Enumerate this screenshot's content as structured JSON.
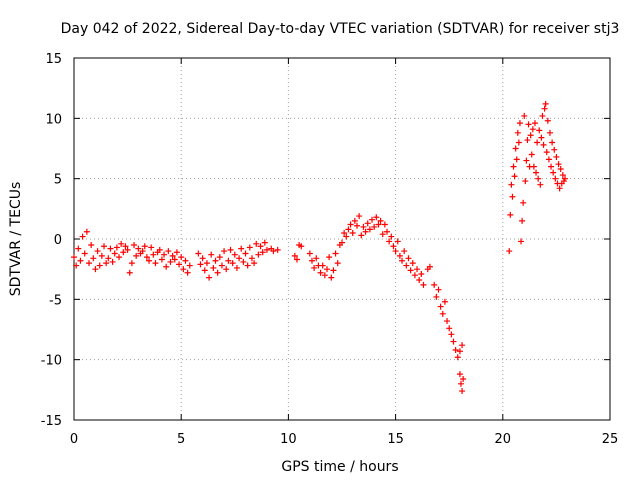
{
  "chart_data": {
    "type": "scatter",
    "title": "Day 042 of 2022, Sidereal Day-to-day VTEC variation (SDTVAR) for receiver stj3",
    "xlabel": "GPS time / hours",
    "ylabel": "SDTVAR / TECUs",
    "xlim": [
      0,
      25
    ],
    "ylim": [
      -15,
      15
    ],
    "xticks": [
      0,
      5,
      10,
      15,
      20,
      25
    ],
    "yticks": [
      -15,
      -10,
      -5,
      0,
      5,
      10,
      15
    ],
    "grid": true,
    "marker": "plus",
    "series_color": "#ff0000",
    "series": [
      {
        "name": "SDTVAR",
        "points": [
          [
            0.0,
            -1.5
          ],
          [
            0.1,
            -2.2
          ],
          [
            0.2,
            -0.8
          ],
          [
            0.3,
            -1.8
          ],
          [
            0.4,
            0.2
          ],
          [
            0.5,
            -1.2
          ],
          [
            0.6,
            0.6
          ],
          [
            0.7,
            -2.0
          ],
          [
            0.8,
            -0.5
          ],
          [
            0.9,
            -1.6
          ],
          [
            1.0,
            -2.5
          ],
          [
            1.1,
            -1.0
          ],
          [
            1.2,
            -2.2
          ],
          [
            1.3,
            -1.4
          ],
          [
            1.4,
            -0.6
          ],
          [
            1.5,
            -2.0
          ],
          [
            1.6,
            -1.6
          ],
          [
            1.7,
            -0.8
          ],
          [
            1.8,
            -1.9
          ],
          [
            1.9,
            -1.2
          ],
          [
            2.0,
            -0.7
          ],
          [
            2.1,
            -1.5
          ],
          [
            2.2,
            -0.4
          ],
          [
            2.3,
            -1.1
          ],
          [
            2.4,
            -0.6
          ],
          [
            2.5,
            -0.9
          ],
          [
            2.6,
            -2.8
          ],
          [
            2.7,
            -2.0
          ],
          [
            2.8,
            -0.5
          ],
          [
            2.9,
            -1.4
          ],
          [
            3.0,
            -0.8
          ],
          [
            3.1,
            -1.2
          ],
          [
            3.2,
            -1.0
          ],
          [
            3.3,
            -0.6
          ],
          [
            3.4,
            -1.5
          ],
          [
            3.5,
            -1.8
          ],
          [
            3.6,
            -0.7
          ],
          [
            3.7,
            -1.3
          ],
          [
            3.8,
            -2.0
          ],
          [
            3.9,
            -1.1
          ],
          [
            4.0,
            -0.9
          ],
          [
            4.1,
            -1.7
          ],
          [
            4.2,
            -1.3
          ],
          [
            4.3,
            -2.3
          ],
          [
            4.4,
            -1.0
          ],
          [
            4.5,
            -1.9
          ],
          [
            4.6,
            -1.4
          ],
          [
            4.7,
            -1.7
          ],
          [
            4.8,
            -1.1
          ],
          [
            4.9,
            -2.1
          ],
          [
            5.0,
            -1.5
          ],
          [
            5.1,
            -2.5
          ],
          [
            5.2,
            -1.8
          ],
          [
            5.3,
            -2.8
          ],
          [
            5.4,
            -2.2
          ],
          [
            5.8,
            -1.2
          ],
          [
            5.9,
            -2.1
          ],
          [
            6.0,
            -1.6
          ],
          [
            6.1,
            -2.6
          ],
          [
            6.2,
            -2.0
          ],
          [
            6.3,
            -3.2
          ],
          [
            6.4,
            -1.3
          ],
          [
            6.5,
            -2.4
          ],
          [
            6.6,
            -1.8
          ],
          [
            6.7,
            -2.8
          ],
          [
            6.8,
            -1.5
          ],
          [
            6.9,
            -2.2
          ],
          [
            7.0,
            -1.0
          ],
          [
            7.1,
            -2.5
          ],
          [
            7.2,
            -1.8
          ],
          [
            7.3,
            -0.9
          ],
          [
            7.4,
            -2.0
          ],
          [
            7.5,
            -1.3
          ],
          [
            7.6,
            -2.4
          ],
          [
            7.7,
            -1.6
          ],
          [
            7.8,
            -0.8
          ],
          [
            7.9,
            -1.9
          ],
          [
            8.0,
            -1.2
          ],
          [
            8.1,
            -2.2
          ],
          [
            8.2,
            -0.7
          ],
          [
            8.3,
            -1.6
          ],
          [
            8.4,
            -2.0
          ],
          [
            8.5,
            -0.4
          ],
          [
            8.6,
            -1.3
          ],
          [
            8.7,
            -0.6
          ],
          [
            8.8,
            -1.1
          ],
          [
            8.9,
            -0.3
          ],
          [
            9.0,
            -0.9
          ],
          [
            9.2,
            -0.8
          ],
          [
            9.3,
            -1.0
          ],
          [
            9.5,
            -0.9
          ],
          [
            10.3,
            -1.4
          ],
          [
            10.4,
            -1.7
          ],
          [
            10.5,
            -0.5
          ],
          [
            10.6,
            -0.6
          ],
          [
            11.0,
            -1.2
          ],
          [
            11.1,
            -1.8
          ],
          [
            11.2,
            -2.4
          ],
          [
            11.3,
            -1.6
          ],
          [
            11.4,
            -2.2
          ],
          [
            11.5,
            -2.8
          ],
          [
            11.6,
            -2.2
          ],
          [
            11.7,
            -3.0
          ],
          [
            11.8,
            -2.5
          ],
          [
            11.9,
            -1.5
          ],
          [
            12.0,
            -3.2
          ],
          [
            12.1,
            -2.6
          ],
          [
            12.2,
            -1.2
          ],
          [
            12.3,
            -2.0
          ],
          [
            12.4,
            -0.5
          ],
          [
            12.5,
            -0.3
          ],
          [
            12.6,
            0.5
          ],
          [
            12.7,
            0.2
          ],
          [
            12.8,
            0.8
          ],
          [
            12.9,
            1.2
          ],
          [
            13.0,
            0.5
          ],
          [
            13.1,
            1.5
          ],
          [
            13.2,
            1.1
          ],
          [
            13.3,
            1.9
          ],
          [
            13.4,
            0.3
          ],
          [
            13.5,
            1.0
          ],
          [
            13.6,
            0.6
          ],
          [
            13.7,
            1.3
          ],
          [
            13.8,
            0.8
          ],
          [
            13.9,
            1.6
          ],
          [
            14.0,
            1.0
          ],
          [
            14.1,
            1.8
          ],
          [
            14.2,
            1.2
          ],
          [
            14.3,
            1.5
          ],
          [
            14.4,
            0.4
          ],
          [
            14.5,
            1.2
          ],
          [
            14.6,
            0.6
          ],
          [
            14.7,
            -0.2
          ],
          [
            14.8,
            0.2
          ],
          [
            14.9,
            -0.6
          ],
          [
            15.0,
            -1.0
          ],
          [
            15.1,
            -0.2
          ],
          [
            15.2,
            -1.4
          ],
          [
            15.3,
            -1.8
          ],
          [
            15.4,
            -1.0
          ],
          [
            15.5,
            -2.2
          ],
          [
            15.6,
            -1.6
          ],
          [
            15.7,
            -2.6
          ],
          [
            15.8,
            -2.0
          ],
          [
            15.9,
            -3.0
          ],
          [
            16.0,
            -2.5
          ],
          [
            16.1,
            -3.4
          ],
          [
            16.2,
            -2.9
          ],
          [
            16.3,
            -3.8
          ],
          [
            16.5,
            -2.5
          ],
          [
            16.6,
            -2.3
          ],
          [
            16.8,
            -3.8
          ],
          [
            16.9,
            -4.8
          ],
          [
            17.0,
            -4.2
          ],
          [
            17.1,
            -5.6
          ],
          [
            17.2,
            -6.2
          ],
          [
            17.3,
            -5.2
          ],
          [
            17.4,
            -6.8
          ],
          [
            17.5,
            -7.4
          ],
          [
            17.6,
            -7.9
          ],
          [
            17.7,
            -8.5
          ],
          [
            17.8,
            -9.2
          ],
          [
            17.9,
            -9.8
          ],
          [
            18.0,
            -9.3
          ],
          [
            18.1,
            -8.8
          ],
          [
            18.0,
            -11.2
          ],
          [
            18.05,
            -12.0
          ],
          [
            18.1,
            -12.6
          ],
          [
            18.15,
            -11.6
          ],
          [
            20.3,
            -1.0
          ],
          [
            20.35,
            2.0
          ],
          [
            20.4,
            4.5
          ],
          [
            20.45,
            3.5
          ],
          [
            20.5,
            6.0
          ],
          [
            20.55,
            5.2
          ],
          [
            20.6,
            7.5
          ],
          [
            20.65,
            6.6
          ],
          [
            20.7,
            8.8
          ],
          [
            20.75,
            8.0
          ],
          [
            20.8,
            9.6
          ],
          [
            20.85,
            -0.2
          ],
          [
            20.9,
            1.5
          ],
          [
            20.95,
            3.0
          ],
          [
            21.0,
            10.2
          ],
          [
            21.05,
            4.8
          ],
          [
            21.1,
            6.5
          ],
          [
            21.15,
            8.2
          ],
          [
            21.2,
            9.5
          ],
          [
            21.25,
            6.0
          ],
          [
            21.3,
            8.6
          ],
          [
            21.35,
            7.0
          ],
          [
            21.4,
            9.1
          ],
          [
            21.45,
            6.0
          ],
          [
            21.5,
            9.6
          ],
          [
            21.55,
            5.5
          ],
          [
            21.6,
            8.0
          ],
          [
            21.65,
            5.0
          ],
          [
            21.7,
            9.0
          ],
          [
            21.75,
            4.5
          ],
          [
            21.8,
            8.4
          ],
          [
            21.85,
            10.2
          ],
          [
            21.9,
            7.8
          ],
          [
            21.95,
            10.8
          ],
          [
            22.0,
            11.2
          ],
          [
            22.05,
            7.2
          ],
          [
            22.1,
            9.8
          ],
          [
            22.15,
            6.6
          ],
          [
            22.2,
            8.8
          ],
          [
            22.25,
            6.0
          ],
          [
            22.3,
            8.0
          ],
          [
            22.35,
            5.5
          ],
          [
            22.4,
            7.4
          ],
          [
            22.45,
            5.0
          ],
          [
            22.5,
            6.8
          ],
          [
            22.55,
            4.6
          ],
          [
            22.6,
            6.2
          ],
          [
            22.65,
            4.2
          ],
          [
            22.7,
            5.8
          ],
          [
            22.75,
            4.6
          ],
          [
            22.8,
            5.3
          ],
          [
            22.85,
            4.8
          ],
          [
            22.9,
            5.0
          ]
        ]
      }
    ]
  }
}
